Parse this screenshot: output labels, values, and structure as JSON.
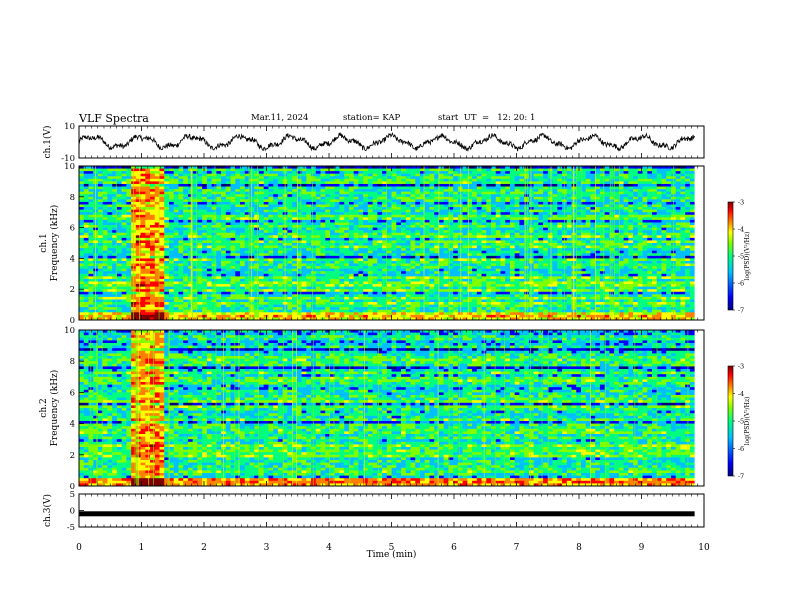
{
  "header": {
    "title": "VLF Spectra",
    "date": "Mar.11, 2024",
    "station": "station= KAP",
    "start_ut": "start  UT  =   12: 20: 1"
  },
  "colors": {
    "spectrogram_scale": [
      "#00007f",
      "#0000ff",
      "#00bfff",
      "#00ff7f",
      "#7fff00",
      "#ffff00",
      "#ff7f00",
      "#ff0000",
      "#7f0000"
    ]
  },
  "chart_data": [
    {
      "type": "line",
      "name": "ch1-waveform",
      "ylabel": "ch.1(V)",
      "ylim": [
        -10,
        10
      ],
      "yticks": [
        "10",
        "-10"
      ],
      "xlim": [
        0,
        10
      ]
    },
    {
      "type": "heatmap",
      "name": "ch1-spectrogram",
      "ylabel_line1": "ch.1",
      "ylabel_line2": "Frequency  (kHz)",
      "ylim": [
        0,
        10
      ],
      "yticks": [
        "0",
        "2",
        "4",
        "6",
        "8",
        "10"
      ],
      "xlim": [
        0,
        9.85
      ],
      "colorbar": {
        "label": "log(PSD)(V²/Hz)",
        "range": [
          -7,
          -3
        ],
        "ticks": [
          "-3",
          "-4",
          "-5",
          "-6",
          "-7"
        ]
      }
    },
    {
      "type": "heatmap",
      "name": "ch2-spectrogram",
      "ylabel_line1": "ch.2",
      "ylabel_line2": "Frequency  (kHz)",
      "ylim": [
        0,
        10
      ],
      "yticks": [
        "0",
        "2",
        "4",
        "6",
        "8",
        "10"
      ],
      "xlim": [
        0,
        9.85
      ],
      "colorbar": {
        "label": "log(PSD)(V²/Hz)",
        "range": [
          -7,
          -3
        ],
        "ticks": [
          "-3",
          "-4",
          "-5",
          "-6",
          "-7"
        ]
      }
    },
    {
      "type": "line",
      "name": "ch3-waveform",
      "ylabel": "ch.3(V)",
      "ylim": [
        -5,
        5
      ],
      "yticks": [
        "5",
        "0",
        "-5"
      ],
      "value": -1,
      "xlim": [
        0,
        9.85
      ]
    }
  ],
  "xaxis": {
    "label": "Time  (min)",
    "range": [
      0,
      10
    ],
    "ticks": [
      "0",
      "1",
      "2",
      "3",
      "4",
      "5",
      "6",
      "7",
      "8",
      "9",
      "10"
    ]
  }
}
